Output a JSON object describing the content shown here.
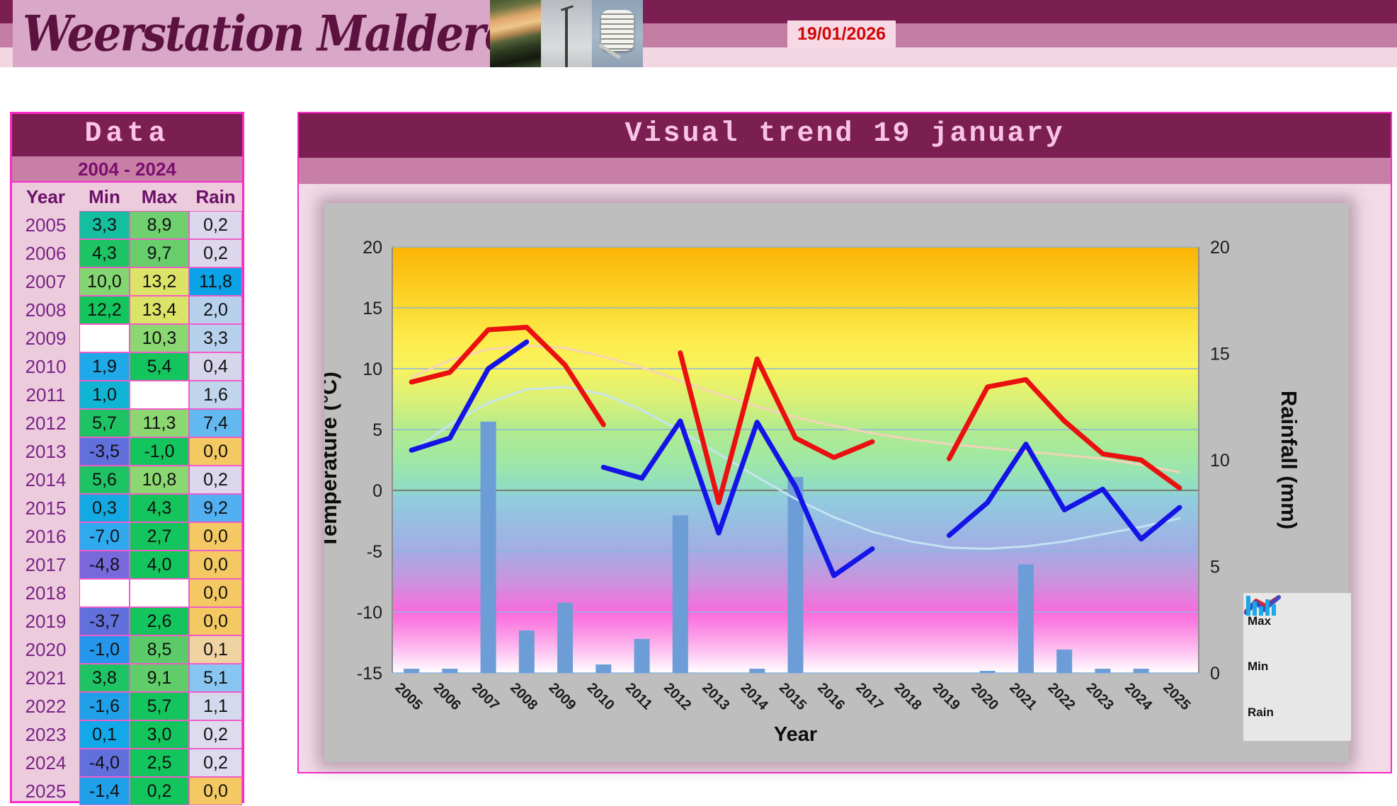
{
  "header": {
    "site_title": "Weerstation Malderen",
    "date": "19/01/2026",
    "photos": [
      "sunset-mast-photo",
      "weather-mast-photo",
      "radiation-shield-photo"
    ]
  },
  "table": {
    "title": "Data",
    "subtitle": "2004 - 2024",
    "columns": [
      "Year",
      "Min",
      "Max",
      "Rain"
    ],
    "rows": [
      {
        "year": "2005",
        "min": "3,3",
        "max": "8,9",
        "rain": "0,2",
        "minColor": "#14BFA0",
        "maxColor": "#70D06F",
        "rainColor": "#DCD7EC"
      },
      {
        "year": "2006",
        "min": "4,3",
        "max": "9,7",
        "rain": "0,2",
        "minColor": "#1EC463",
        "maxColor": "#68CE6C",
        "rainColor": "#DCD7EC"
      },
      {
        "year": "2007",
        "min": "10,0",
        "max": "13,2",
        "rain": "11,8",
        "minColor": "#84D672",
        "maxColor": "#DCE468",
        "rainColor": "#0BA3E8"
      },
      {
        "year": "2008",
        "min": "12,2",
        "max": "13,4",
        "rain": "2,0",
        "minColor": "#14C55E",
        "maxColor": "#DCE468",
        "rainColor": "#B7D0EB"
      },
      {
        "year": "2009",
        "min": "",
        "max": "10,3",
        "rain": "3,3",
        "minColor": "#FFFFFF",
        "maxColor": "#8BD873",
        "rainColor": "#B7D0EB"
      },
      {
        "year": "2010",
        "min": "1,9",
        "max": "5,4",
        "rain": "0,4",
        "minColor": "#1FA9E9",
        "maxColor": "#14C55E",
        "rainColor": "#D7D5EC"
      },
      {
        "year": "2011",
        "min": "1,0",
        "max": "",
        "rain": "1,6",
        "minColor": "#10B5D4",
        "maxColor": "#FFFFFF",
        "rainColor": "#C0D5EC"
      },
      {
        "year": "2012",
        "min": "5,7",
        "max": "11,3",
        "rain": "7,4",
        "minColor": "#1EC463",
        "maxColor": "#8BD873",
        "rainColor": "#64B8F0"
      },
      {
        "year": "2013",
        "min": "-3,5",
        "max": "-1,0",
        "rain": "0,0",
        "minColor": "#6170DC",
        "maxColor": "#14C55E",
        "rainColor": "#F4C963"
      },
      {
        "year": "2014",
        "min": "5,6",
        "max": "10,8",
        "rain": "0,2",
        "minColor": "#1EC463",
        "maxColor": "#8BD873",
        "rainColor": "#DCD7EC"
      },
      {
        "year": "2015",
        "min": "0,3",
        "max": "4,3",
        "rain": "9,2",
        "minColor": "#13A9E2",
        "maxColor": "#14C55E",
        "rainColor": "#53B0F0"
      },
      {
        "year": "2016",
        "min": "-7,0",
        "max": "2,7",
        "rain": "0,0",
        "minColor": "#2FAAEE",
        "maxColor": "#14C55E",
        "rainColor": "#F4C963"
      },
      {
        "year": "2017",
        "min": "-4,8",
        "max": "4,0",
        "rain": "0,0",
        "minColor": "#7868DC",
        "maxColor": "#14C55E",
        "rainColor": "#F4C963"
      },
      {
        "year": "2018",
        "min": "",
        "max": "",
        "rain": "0,0",
        "minColor": "#FFFFFF",
        "maxColor": "#FFFFFF",
        "rainColor": "#F4C963"
      },
      {
        "year": "2019",
        "min": "-3,7",
        "max": "2,6",
        "rain": "0,0",
        "minColor": "#6170DC",
        "maxColor": "#14C55E",
        "rainColor": "#F4C963"
      },
      {
        "year": "2020",
        "min": "-1,0",
        "max": "8,5",
        "rain": "0,1",
        "minColor": "#2497EC",
        "maxColor": "#5BCB69",
        "rainColor": "#EFD3A2"
      },
      {
        "year": "2021",
        "min": "3,8",
        "max": "9,1",
        "rain": "5,1",
        "minColor": "#1EC463",
        "maxColor": "#60CC6A",
        "rainColor": "#89C5F1"
      },
      {
        "year": "2022",
        "min": "-1,6",
        "max": "5,7",
        "rain": "1,1",
        "minColor": "#1FA0E9",
        "maxColor": "#14C55E",
        "rainColor": "#D4D9EE"
      },
      {
        "year": "2023",
        "min": "0,1",
        "max": "3,0",
        "rain": "0,2",
        "minColor": "#13A9E8",
        "maxColor": "#14C55E",
        "rainColor": "#DFDBEF"
      },
      {
        "year": "2024",
        "min": "-4,0",
        "max": "2,5",
        "rain": "0,2",
        "minColor": "#6170DC",
        "maxColor": "#14C55E",
        "rainColor": "#DFDBEF"
      },
      {
        "year": "2025",
        "min": "-1,4",
        "max": "0,2",
        "rain": "0,0",
        "minColor": "#1FA0E9",
        "maxColor": "#14C55E",
        "rainColor": "#F4C963"
      }
    ]
  },
  "chart": {
    "title": "Visual trend 19 january",
    "legend": [
      {
        "label": "Max",
        "icon": "red-line-icon"
      },
      {
        "label": "Min",
        "icon": "blue-line-icon"
      },
      {
        "label": "Rain",
        "icon": "bars-icon"
      }
    ]
  },
  "chart_data": {
    "type": "line+bar",
    "title": "Visual trend 19 january",
    "xlabel": "Year",
    "ylabel_left": "Temperature (°C)",
    "ylabel_right": "Rainfall (mm)",
    "categories": [
      2005,
      2006,
      2007,
      2008,
      2009,
      2010,
      2011,
      2012,
      2013,
      2014,
      2015,
      2016,
      2017,
      2018,
      2019,
      2020,
      2021,
      2022,
      2023,
      2024,
      2025
    ],
    "series": [
      {
        "name": "Max",
        "type": "line",
        "axis": "left",
        "color": "#EA1010",
        "values": [
          8.9,
          9.7,
          13.2,
          13.4,
          10.3,
          5.4,
          null,
          11.3,
          -1.0,
          10.8,
          4.3,
          2.7,
          4.0,
          null,
          2.6,
          8.5,
          9.1,
          5.7,
          3.0,
          2.5,
          0.2
        ]
      },
      {
        "name": "Min",
        "type": "line",
        "axis": "left",
        "color": "#1414E6",
        "values": [
          3.3,
          4.3,
          10.0,
          12.2,
          null,
          1.9,
          1.0,
          5.7,
          -3.5,
          5.6,
          0.3,
          -7.0,
          -4.8,
          null,
          -3.7,
          -1.0,
          3.8,
          -1.6,
          0.1,
          -4.0,
          -1.4
        ]
      },
      {
        "name": "Rain",
        "type": "bar",
        "axis": "right",
        "color": "#6D9DD6",
        "values": [
          0.2,
          0.2,
          11.8,
          2.0,
          3.3,
          0.4,
          1.6,
          7.4,
          0,
          0.2,
          9.2,
          0,
          0,
          0,
          0,
          0.1,
          5.1,
          1.1,
          0.2,
          0.2,
          0
        ]
      }
    ],
    "trendlines": [
      {
        "name": "Max trend",
        "color": "#F5D2BB",
        "values": [
          9.3,
          10.7,
          11.6,
          11.9,
          11.7,
          11.0,
          10.1,
          9.0,
          7.9,
          6.9,
          6.0,
          5.3,
          4.7,
          4.2,
          3.8,
          3.5,
          3.2,
          2.9,
          2.6,
          2.1,
          1.5
        ]
      },
      {
        "name": "Min trend",
        "color": "#C6E4F3",
        "values": [
          3.2,
          5.4,
          7.2,
          8.3,
          8.5,
          7.9,
          6.6,
          4.9,
          3.0,
          1.1,
          -0.7,
          -2.2,
          -3.4,
          -4.2,
          -4.7,
          -4.8,
          -4.6,
          -4.2,
          -3.6,
          -3.0,
          -2.3
        ]
      }
    ],
    "y_left": {
      "min": -15,
      "max": 20,
      "ticks": [
        20,
        15,
        10,
        5,
        0,
        -5,
        -10,
        -15
      ]
    },
    "y_right": {
      "min": 0,
      "max": 20,
      "ticks": [
        20,
        15,
        10,
        5,
        0
      ]
    },
    "grid": {
      "on": true,
      "line_color": "#8FB4DC",
      "zero_line_color": "#7F7F7F"
    },
    "legend_position": "bottom-right",
    "background_gradient": [
      [
        0.0,
        "#FBB404"
      ],
      [
        0.14,
        "#FCD92E"
      ],
      [
        0.22,
        "#FDEC4C"
      ],
      [
        0.286,
        "#F7F35F"
      ],
      [
        0.36,
        "#D9F077"
      ],
      [
        0.429,
        "#B2EB8E"
      ],
      [
        0.5,
        "#9FE8A4"
      ],
      [
        0.571,
        "#90DCC6"
      ],
      [
        0.585,
        "#90CEDC"
      ],
      [
        0.64,
        "#97BFE2"
      ],
      [
        0.714,
        "#A3ACE4"
      ],
      [
        0.78,
        "#C795DE"
      ],
      [
        0.857,
        "#F96CDC"
      ],
      [
        0.88,
        "#FB7CE0"
      ],
      [
        0.93,
        "#FDAEEC"
      ],
      [
        1.0,
        "#FFFFFF"
      ]
    ]
  }
}
